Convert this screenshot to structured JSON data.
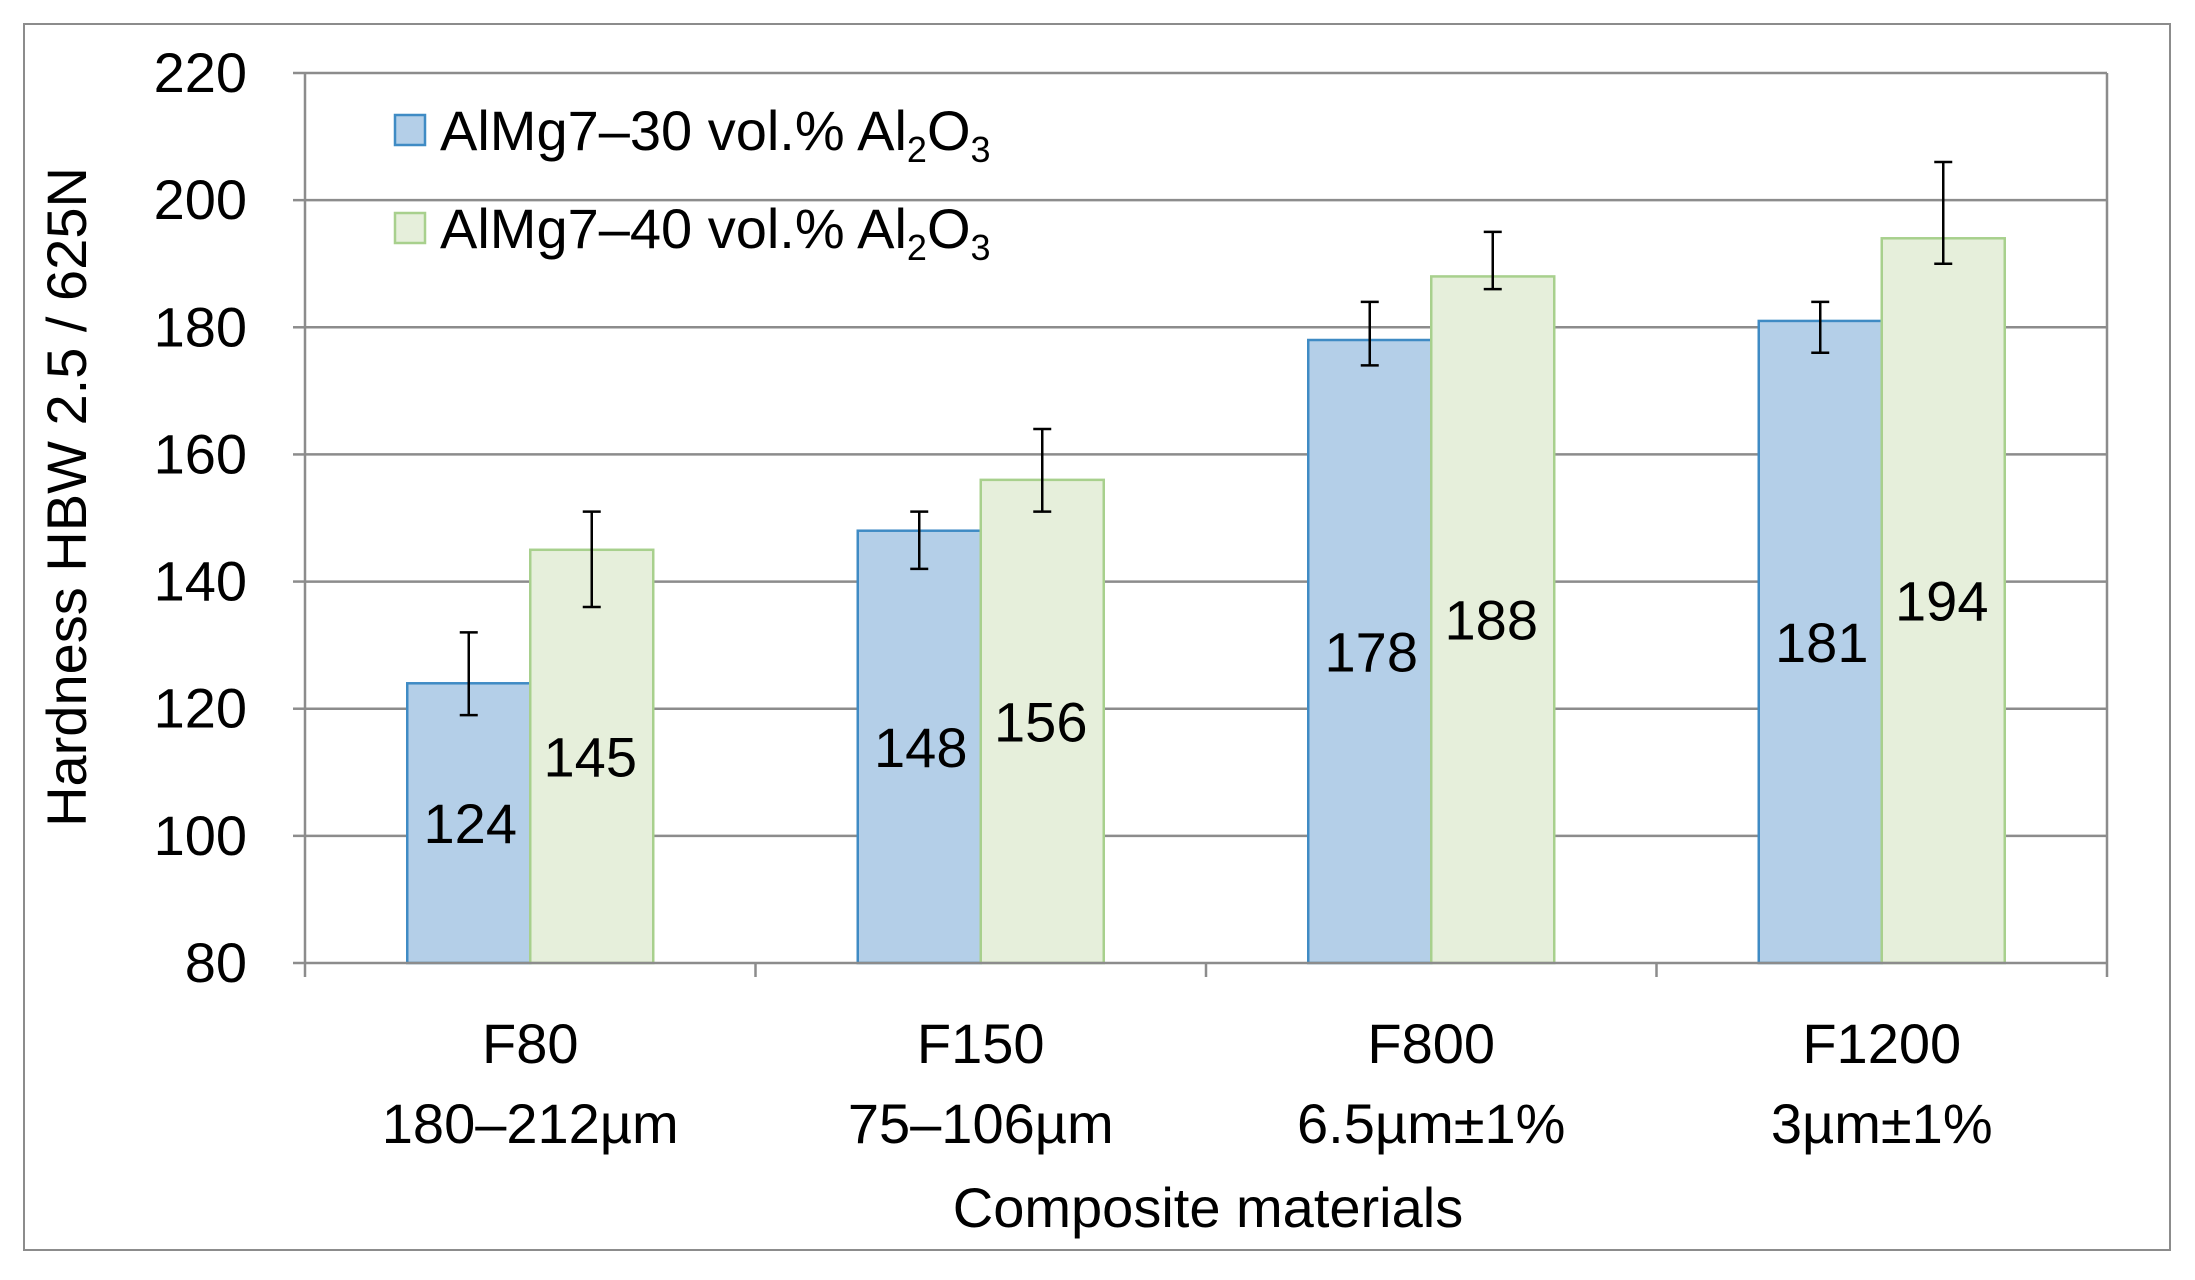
{
  "chart_data": {
    "type": "bar",
    "title": "",
    "xlabel": "Composite materials",
    "ylabel": "Hardness HBW 2.5 / 625N",
    "ylim": [
      80,
      220
    ],
    "yticks": [
      "80",
      "100",
      "120",
      "140",
      "160",
      "180",
      "200",
      "220"
    ],
    "grid": true,
    "legend_position": "top-left",
    "categories": [
      {
        "name": "F80",
        "size": "180–212µm"
      },
      {
        "name": "F150",
        "size": "75–106µm"
      },
      {
        "name": "F800",
        "size": "6.5µm±1%"
      },
      {
        "name": "F1200",
        "size": "3µm±1%"
      }
    ],
    "series": [
      {
        "name_prefix": "AlMg7–30 vol.% Al",
        "name_sub1": "2",
        "name_mid": "O",
        "name_sub2": "3",
        "fill": "#b4cfe8",
        "stroke": "#3f8bc4",
        "values": [
          124,
          148,
          178,
          181
        ],
        "error_low": [
          119,
          142,
          174,
          176
        ],
        "error_high": [
          132,
          151,
          184,
          184
        ],
        "labels": [
          "124",
          "148",
          "178",
          "181"
        ]
      },
      {
        "name_prefix": "AlMg7–40 vol.% Al",
        "name_sub1": "2",
        "name_mid": "O",
        "name_sub2": "3",
        "fill": "#e6efdb",
        "stroke": "#a8d08d",
        "values": [
          145,
          156,
          188,
          194
        ],
        "error_low": [
          136,
          151,
          186,
          190
        ],
        "error_high": [
          151,
          164,
          195,
          206
        ],
        "labels": [
          "145",
          "156",
          "188",
          "194"
        ]
      }
    ]
  }
}
